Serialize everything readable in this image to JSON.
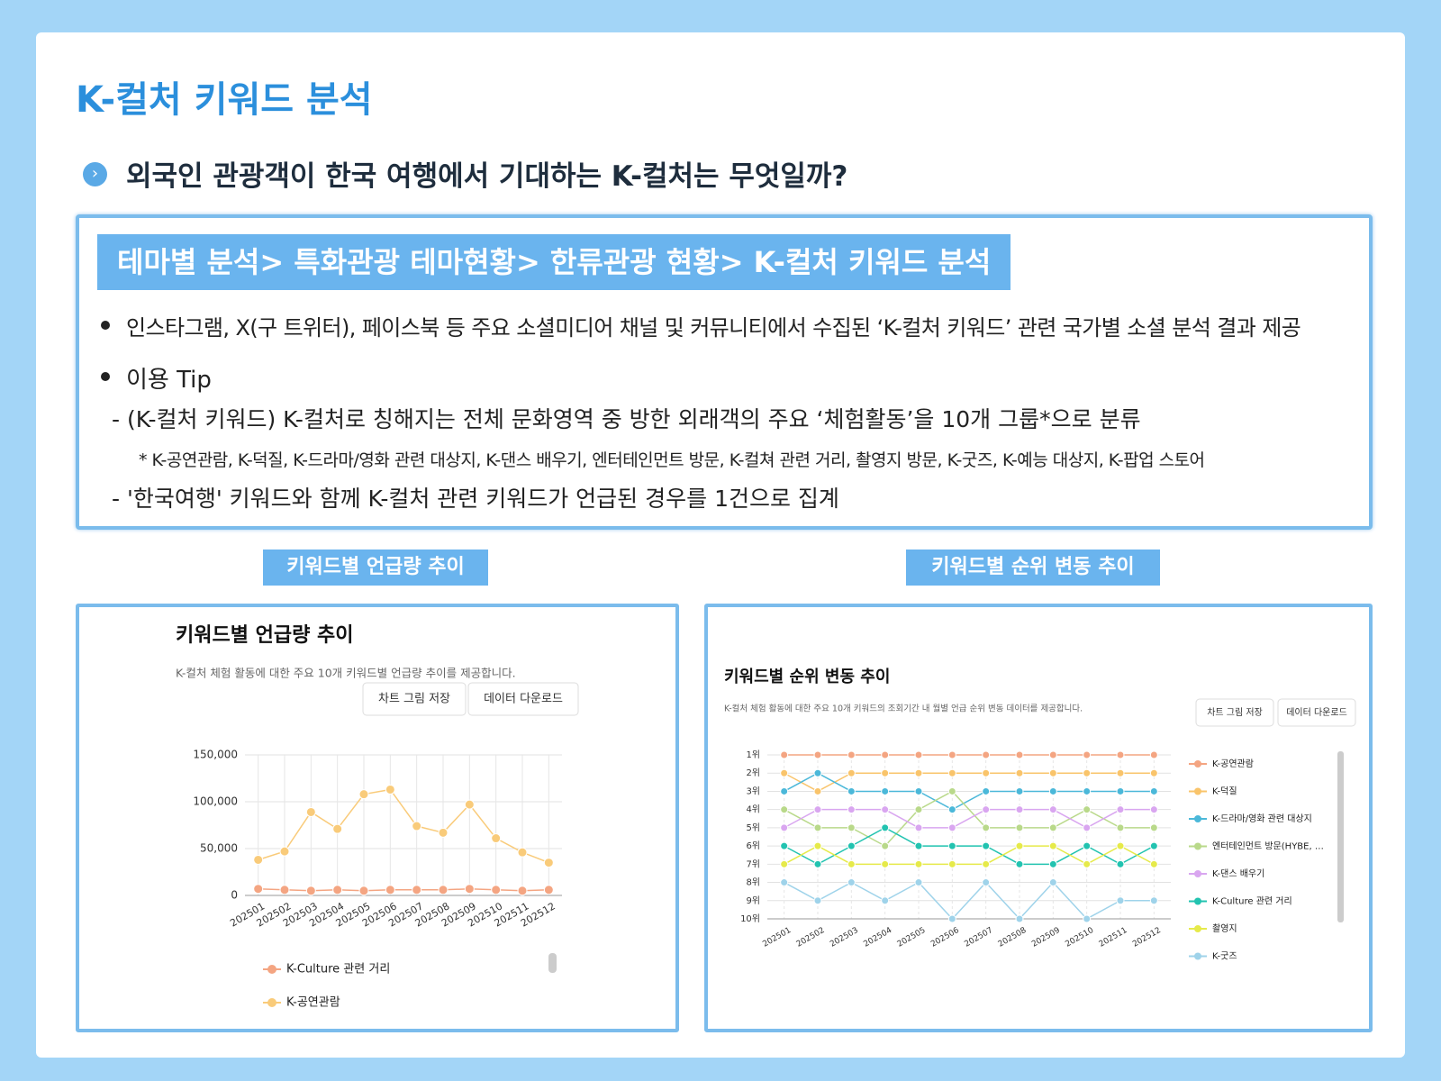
{
  "header": {
    "title": "K-컬처 키워드 분석",
    "question": "외국인 관광객이 한국 여행에서 기대하는 K-컬처는 무엇일까?"
  },
  "info": {
    "breadcrumb": "테마별 분석> 특화관광 테마현황> 한류관광 현황> K-컬처 키워드 분석",
    "bullet": "인스타그램, X(구 트위터), 페이스북 등 주요 소셜미디어 채널 및 커뮤니티에서 수집된 ‘K-컬처 키워드’ 관련 국가별 소셜 분석 결과 제공",
    "tip_title": "이용 Tip",
    "tip1": "- (K-컬처 키워드) K-컬처로 칭해지는 전체 문화영역 중 방한 외래객의 주요 ‘체험활동’을 10개 그룹*으로 분류",
    "note": "* K-공연관람, K-덕질, K-드라마/영화 관련 대상지, K-댄스 배우기, 엔터테인먼트 방문, K-컬쳐 관련 거리, 촬영지 방문, K-굿즈, K-예능 대상지, K-팝업 스토어",
    "tip2": "- '한국여행' 키워드와 함께 K-컬처 관련 키워드가 언급된 경우를 1건으로 집계"
  },
  "tabs": [
    "키워드별 언급량 추이",
    "키워드별 순위 변동 추이"
  ],
  "chart_data": [
    {
      "type": "line",
      "title": "키워드별 언급량 추이",
      "subtitle": "K-컬처 체험 활동에 대한 주요 10개 키워드별 언급량 추이를 제공합니다.",
      "buttons": [
        "차트 그림 저장",
        "데이터 다운로드"
      ],
      "categories": [
        "202501",
        "202502",
        "202503",
        "202504",
        "202505",
        "202506",
        "202507",
        "202508",
        "202509",
        "202510",
        "202511",
        "202512"
      ],
      "ylim": [
        0,
        150000
      ],
      "yticks": [
        0,
        {
          "value": 50000,
          "label": "50,000"
        },
        {
          "value": 100000,
          "label": "100,000"
        },
        {
          "value": 150000,
          "label": "150,000"
        }
      ],
      "grid": true,
      "series": [
        {
          "name": "K-Culture 관련 거리",
          "color": "#f4a582",
          "values": [
            7000,
            6000,
            5000,
            6000,
            5000,
            6000,
            6000,
            6000,
            7000,
            6000,
            5000,
            6000
          ]
        },
        {
          "name": "K-공연관람",
          "color": "#f9cb7a",
          "values": [
            38000,
            47000,
            89000,
            71000,
            108000,
            113000,
            74000,
            67000,
            97000,
            61000,
            46000,
            35000
          ]
        }
      ]
    },
    {
      "type": "line",
      "title": "키워드별 순위 변동 추이",
      "subtitle": "K-컬처 체험 활동에 대한 주요 10개 키워드의 조회기간 내 월별 언급 순위 변동 데이터를 제공합니다.",
      "buttons": [
        "차트 그림 저장",
        "데이터 다운로드"
      ],
      "categories": [
        "202501",
        "202502",
        "202503",
        "202504",
        "202505",
        "202506",
        "202507",
        "202508",
        "202509",
        "202510",
        "202511",
        "202512"
      ],
      "ylim": [
        10,
        1
      ],
      "yticks": [
        {
          "value": 1,
          "label": "1위"
        },
        {
          "value": 2,
          "label": "2위"
        },
        {
          "value": 3,
          "label": "3위"
        },
        {
          "value": 4,
          "label": "4위"
        },
        {
          "value": 5,
          "label": "5위"
        },
        {
          "value": 6,
          "label": "6위"
        },
        {
          "value": 7,
          "label": "7위"
        },
        {
          "value": 8,
          "label": "8위"
        },
        {
          "value": 9,
          "label": "9위"
        },
        {
          "value": 10,
          "label": "10위"
        }
      ],
      "grid": true,
      "series": [
        {
          "name": "K-공연관람",
          "color": "#f4a582",
          "values": [
            1,
            1,
            1,
            1,
            1,
            1,
            1,
            1,
            1,
            1,
            1,
            1
          ]
        },
        {
          "name": "K-덕질",
          "color": "#f9c46b",
          "values": [
            2,
            3,
            2,
            2,
            2,
            2,
            2,
            2,
            2,
            2,
            2,
            2
          ]
        },
        {
          "name": "K-드라마/영화 관련 대상지",
          "color": "#4bb8d9",
          "values": [
            3,
            2,
            3,
            3,
            3,
            4,
            3,
            3,
            3,
            3,
            3,
            3
          ]
        },
        {
          "name": "엔터테인먼트 방문(HYBE, …",
          "color": "#b9d98a",
          "values": [
            4,
            5,
            5,
            6,
            4,
            3,
            5,
            5,
            5,
            4,
            5,
            5
          ]
        },
        {
          "name": "K-댄스 배우기",
          "color": "#d9a6f0",
          "values": [
            5,
            4,
            4,
            4,
            5,
            5,
            4,
            4,
            4,
            5,
            4,
            4
          ]
        },
        {
          "name": "K-Culture 관련 거리",
          "color": "#22c3b0",
          "values": [
            6,
            7,
            6,
            5,
            6,
            6,
            6,
            7,
            7,
            6,
            7,
            6
          ]
        },
        {
          "name": "촬영지",
          "color": "#e6ea4a",
          "values": [
            7,
            6,
            7,
            7,
            7,
            7,
            7,
            6,
            6,
            7,
            6,
            7
          ]
        },
        {
          "name": "K-굿즈",
          "color": "#9fd3ea",
          "values": [
            8,
            9,
            8,
            9,
            8,
            10,
            8,
            10,
            8,
            10,
            9,
            9
          ]
        }
      ]
    }
  ]
}
